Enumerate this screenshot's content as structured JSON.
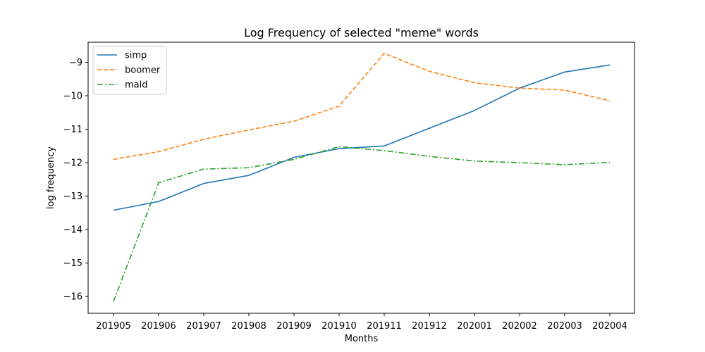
{
  "chart_data": {
    "type": "line",
    "title": "Log Frequency of selected \"meme\" words",
    "xlabel": "Months",
    "ylabel": "log frequency",
    "categories": [
      "201905",
      "201906",
      "201907",
      "201908",
      "201909",
      "201910",
      "201911",
      "201912",
      "202001",
      "202002",
      "202003",
      "202004"
    ],
    "ylim": [
      -16.5,
      -8.4
    ],
    "yticks": [
      -16,
      -15,
      -14,
      -13,
      -12,
      -11,
      -10,
      -9
    ],
    "grid": false,
    "legend_position": "top-left",
    "series": [
      {
        "name": "simp",
        "color": "#1f77b4",
        "style": "solid",
        "values": [
          -13.42,
          -13.16,
          -12.62,
          -12.38,
          -11.84,
          -11.58,
          -11.5,
          -10.97,
          -10.44,
          -9.77,
          -9.29,
          -9.08
        ]
      },
      {
        "name": "boomer",
        "color": "#ff7f0e",
        "style": "dashed",
        "values": [
          -11.9,
          -11.67,
          -11.3,
          -11.02,
          -10.76,
          -10.31,
          -8.73,
          -9.27,
          -9.61,
          -9.77,
          -9.83,
          -10.15
        ]
      },
      {
        "name": "mald",
        "color": "#2ca02c",
        "style": "dashdot",
        "values": [
          -16.15,
          -12.6,
          -12.19,
          -12.15,
          -11.9,
          -11.52,
          -11.64,
          -11.81,
          -11.95,
          -12.0,
          -12.06,
          -11.99
        ]
      }
    ]
  }
}
